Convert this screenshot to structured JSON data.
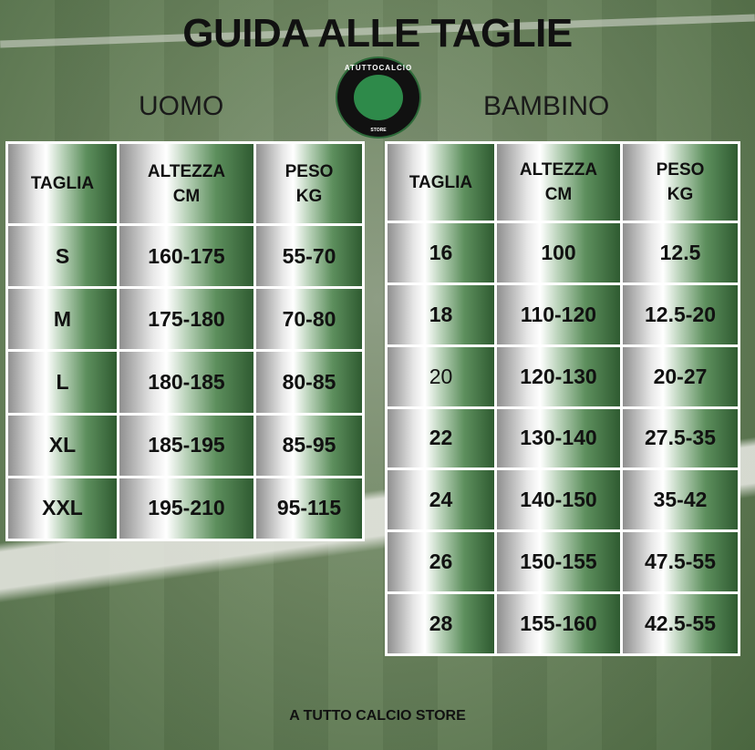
{
  "title": "GUIDA ALLE TAGLIE",
  "logo": {
    "text": "ATUTTOCALCIO",
    "sub": "STORE"
  },
  "uomo": {
    "label": "UOMO",
    "headers": [
      "TAGLIA",
      "ALTEZZA\nCM",
      "PESO\nKG"
    ],
    "rows": [
      [
        "S",
        "160-175",
        "55-70"
      ],
      [
        "M",
        "175-180",
        "70-80"
      ],
      [
        "L",
        "180-185",
        "80-85"
      ],
      [
        "XL",
        "185-195",
        "85-95"
      ],
      [
        "XXL",
        "195-210",
        "95-115"
      ]
    ]
  },
  "bambino": {
    "label": "BAMBINO",
    "headers": [
      "TAGLIA",
      "ALTEZZA\nCM",
      "PESO\nKG"
    ],
    "rows": [
      [
        "16",
        "100",
        "12.5"
      ],
      [
        "18",
        "110-120",
        "12.5-20"
      ],
      [
        "20",
        "120-130",
        "20-27"
      ],
      [
        "22",
        "130-140",
        "27.5-35"
      ],
      [
        "24",
        "140-150",
        "35-42"
      ],
      [
        "26",
        "150-155",
        "47.5-55"
      ],
      [
        "28",
        "155-160",
        "42.5-55"
      ]
    ]
  },
  "footer": "A TUTTO CALCIO STORE",
  "colors": {
    "green_dark": "#2f5b31",
    "accent": "#2e8a4a"
  }
}
